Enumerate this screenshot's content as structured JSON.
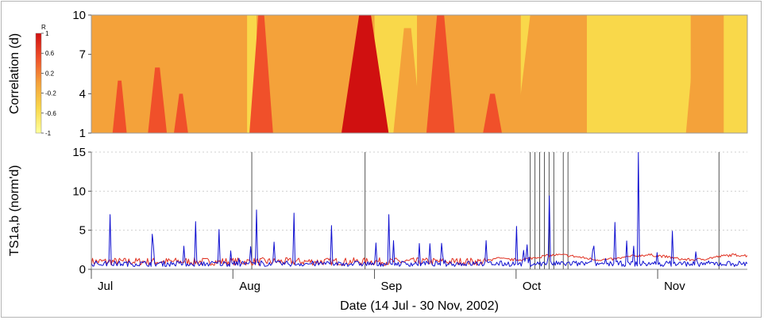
{
  "chart_data": [
    {
      "type": "heatmap",
      "ylabel": "Correlation (d)",
      "y_ticks": [
        1,
        4,
        7,
        10
      ],
      "ylim": [
        1,
        10
      ],
      "colorbar": {
        "title": "R",
        "ticks": [
          "1",
          "0.6",
          "0.2",
          "-0.2",
          "-0.6",
          "-1"
        ],
        "range": [
          -1,
          1
        ],
        "colors": [
          "#d01010",
          "#f0502a",
          "#f4a23a",
          "#f9d84a",
          "#ffff9a"
        ]
      },
      "bands": [
        {
          "center": "2002-07-20",
          "width_days": 3,
          "r": 0.6,
          "top": 5
        },
        {
          "center": "2002-07-28",
          "width_days": 4,
          "r": 0.6,
          "top": 6
        },
        {
          "center": "2002-08-02",
          "width_days": 3,
          "r": 0.6,
          "top": 4
        },
        {
          "center": "2002-08-12",
          "width_days": 6,
          "r": 0.2,
          "top": 10
        },
        {
          "center": "2002-08-19",
          "width_days": 5,
          "r": 0.7,
          "top": 10
        },
        {
          "center": "2002-09-10",
          "width_days": 10,
          "r": 0.8,
          "top": 10
        },
        {
          "center": "2002-09-19",
          "width_days": 6,
          "r": 0.2,
          "top": 9
        },
        {
          "center": "2002-09-26",
          "width_days": 6,
          "r": 0.6,
          "top": 10
        },
        {
          "center": "2002-10-07",
          "width_days": 4,
          "r": 0.6,
          "top": 4
        },
        {
          "center": "2002-10-16",
          "width_days": 8,
          "r": 0.2,
          "top": 10
        },
        {
          "center": "2002-11-20",
          "width_days": 6,
          "r": 0.2,
          "top": 10
        }
      ],
      "yellow_regions": [
        {
          "start": "2002-08-16",
          "end": "2002-08-18",
          "r": -0.5
        },
        {
          "start": "2002-09-12",
          "end": "2002-09-21",
          "r": -0.6
        },
        {
          "start": "2002-10-13",
          "end": "2002-10-15",
          "r": -0.4
        },
        {
          "start": "2002-10-27",
          "end": "2002-11-18",
          "r": -0.4
        },
        {
          "start": "2002-11-25",
          "end": "2002-11-30",
          "r": -0.4
        }
      ]
    },
    {
      "type": "line",
      "ylabel": "TS1a,b (norm'd)",
      "xlabel": "Date (14 Jul - 30 Nov, 2002)",
      "ylim": [
        0,
        15
      ],
      "y_ticks": [
        0,
        5,
        10,
        15
      ],
      "x_ticks": [
        "Jul",
        "Aug",
        "Sep",
        "Oct",
        "Nov"
      ],
      "x_tick_dates": [
        "2002-07-14",
        "2002-08-13",
        "2002-09-12",
        "2002-10-12",
        "2002-11-11"
      ],
      "x_range": [
        "2002-07-14",
        "2002-11-30"
      ],
      "grid": true,
      "series": [
        {
          "color": "#e03020",
          "baseline": 1.1
        },
        {
          "color": "#1010d0",
          "baseline": 0.8,
          "peaks": [
            {
              "date": "2002-07-18",
              "y": 7.0
            },
            {
              "date": "2002-07-27",
              "y": 4.5
            },
            {
              "date": "2002-08-05",
              "y": 6.1
            },
            {
              "date": "2002-08-10",
              "y": 5.1
            },
            {
              "date": "2002-08-18",
              "y": 7.6
            },
            {
              "date": "2002-08-26",
              "y": 7.2
            },
            {
              "date": "2002-09-03",
              "y": 5.6
            },
            {
              "date": "2002-09-15",
              "y": 7.0
            },
            {
              "date": "2002-10-12",
              "y": 5.5
            },
            {
              "date": "2002-10-19",
              "y": 9.4
            },
            {
              "date": "2002-11-02",
              "y": 6.0
            },
            {
              "date": "2002-11-07",
              "y": 15.0
            },
            {
              "date": "2002-11-14",
              "y": 4.9
            }
          ]
        }
      ],
      "vertical_markers": [
        "2002-08-17",
        "2002-09-10",
        "2002-10-15",
        "2002-10-16",
        "2002-10-17",
        "2002-10-18",
        "2002-10-19",
        "2002-10-20",
        "2002-10-22",
        "2002-10-23",
        "2002-11-24"
      ]
    }
  ]
}
